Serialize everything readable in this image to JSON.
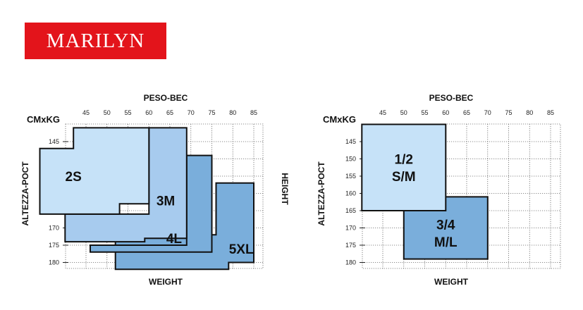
{
  "brand": {
    "name": "MARILYN",
    "color": "#e3141b"
  },
  "chart_data": [
    {
      "type": "area",
      "top_label": "PESO-BEC",
      "corner_label": "CMxKG",
      "bottom_label": "WEIGHT",
      "left_label": "ALTEZZA-POCT",
      "right_label": "HEIGHT",
      "x_ticks": [
        45,
        50,
        55,
        60,
        65,
        70,
        75,
        80,
        85
      ],
      "y_ticks": [
        145,
        150,
        155,
        160,
        165,
        170,
        175,
        180
      ],
      "xlim": [
        40,
        90
      ],
      "ylim": [
        140,
        182
      ],
      "grid": true,
      "regions": [
        {
          "name": "5XL",
          "color": "#7aaedb",
          "points": [
            [
              52,
              177
            ],
            [
              52,
              182
            ],
            [
              79,
              182
            ],
            [
              79,
              180
            ],
            [
              85,
              180
            ],
            [
              85,
              157
            ],
            [
              76,
              157
            ],
            [
              76,
              172
            ],
            [
              52,
              172
            ]
          ]
        },
        {
          "name": "4L",
          "color": "#7aaedb",
          "points": [
            [
              46,
              177
            ],
            [
              46,
              175
            ],
            [
              69,
              175
            ],
            [
              69,
              149
            ],
            [
              75,
              149
            ],
            [
              75,
              177
            ]
          ]
        },
        {
          "name": "3M",
          "color": "#a7cbee",
          "points": [
            [
              40,
              174
            ],
            [
              40,
              166
            ],
            [
              60,
              166
            ],
            [
              60,
              141
            ],
            [
              69,
              141
            ],
            [
              69,
              173
            ],
            [
              59,
              173
            ],
            [
              59,
              174
            ]
          ]
        },
        {
          "name": "2S",
          "color": "#c6e2f8",
          "points": [
            [
              34,
              147
            ],
            [
              42,
              147
            ],
            [
              42,
              141
            ],
            [
              60,
              141
            ],
            [
              60,
              163
            ],
            [
              53,
              163
            ],
            [
              53,
              166
            ],
            [
              34,
              166
            ]
          ]
        }
      ],
      "labels": [
        {
          "text": "2S",
          "x": 42,
          "y": 155
        },
        {
          "text": "3M",
          "x": 64,
          "y": 162
        },
        {
          "text": "4L",
          "x": 66,
          "y": 173
        },
        {
          "text": "5XL",
          "x": 82,
          "y": 176
        }
      ]
    },
    {
      "type": "area",
      "top_label": "PESO-BEC",
      "corner_label": "CMxKG",
      "bottom_label": "WEIGHT",
      "left_label": "ALTEZZA-POCT",
      "x_ticks": [
        45,
        50,
        55,
        60,
        65,
        70,
        75,
        80,
        85
      ],
      "y_ticks": [
        145,
        150,
        155,
        160,
        165,
        170,
        175,
        180
      ],
      "xlim": [
        40,
        90
      ],
      "ylim": [
        140,
        182
      ],
      "grid": true,
      "regions": [
        {
          "name": "3/4 M/L",
          "color": "#7aaedb",
          "points": [
            [
              50,
              161
            ],
            [
              70,
              161
            ],
            [
              70,
              179
            ],
            [
              50,
              179
            ]
          ]
        },
        {
          "name": "1/2 S/M",
          "color": "#c6e2f8",
          "points": [
            [
              40,
              140
            ],
            [
              60,
              140
            ],
            [
              60,
              165
            ],
            [
              40,
              165
            ]
          ]
        }
      ],
      "labels": [
        {
          "text": "1/2",
          "x": 50,
          "y": 150
        },
        {
          "text": "S/M",
          "x": 50,
          "y": 155
        },
        {
          "text": "3/4",
          "x": 60,
          "y": 169
        },
        {
          "text": "M/L",
          "x": 60,
          "y": 174
        }
      ]
    }
  ]
}
